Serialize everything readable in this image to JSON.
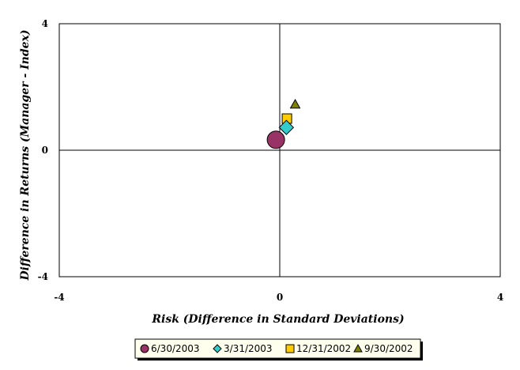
{
  "chart_data": {
    "type": "scatter",
    "title": "",
    "xlabel": "Risk (Difference in Standard Deviations)",
    "ylabel": "Difference in Returns (Manager - Index)",
    "xlim": [
      -4,
      4
    ],
    "ylim": [
      -4,
      4
    ],
    "x_ticks": [
      "-4",
      "0",
      "4"
    ],
    "y_ticks": [
      "4",
      "0",
      "-4"
    ],
    "grid": false,
    "legend_position": "bottom",
    "series": [
      {
        "name": "6/30/2003",
        "marker": "circle",
        "color": "#993366",
        "x": [
          -0.07
        ],
        "y": [
          0.33
        ]
      },
      {
        "name": "3/31/2003",
        "marker": "diamond",
        "color": "#33cccc",
        "x": [
          0.12
        ],
        "y": [
          0.72
        ]
      },
      {
        "name": "12/31/2002",
        "marker": "square",
        "color": "#ffcc00",
        "x": [
          0.13
        ],
        "y": [
          1.0
        ]
      },
      {
        "name": "9/30/2002",
        "marker": "triangle",
        "color": "#808000",
        "x": [
          0.28
        ],
        "y": [
          1.45
        ]
      }
    ]
  }
}
